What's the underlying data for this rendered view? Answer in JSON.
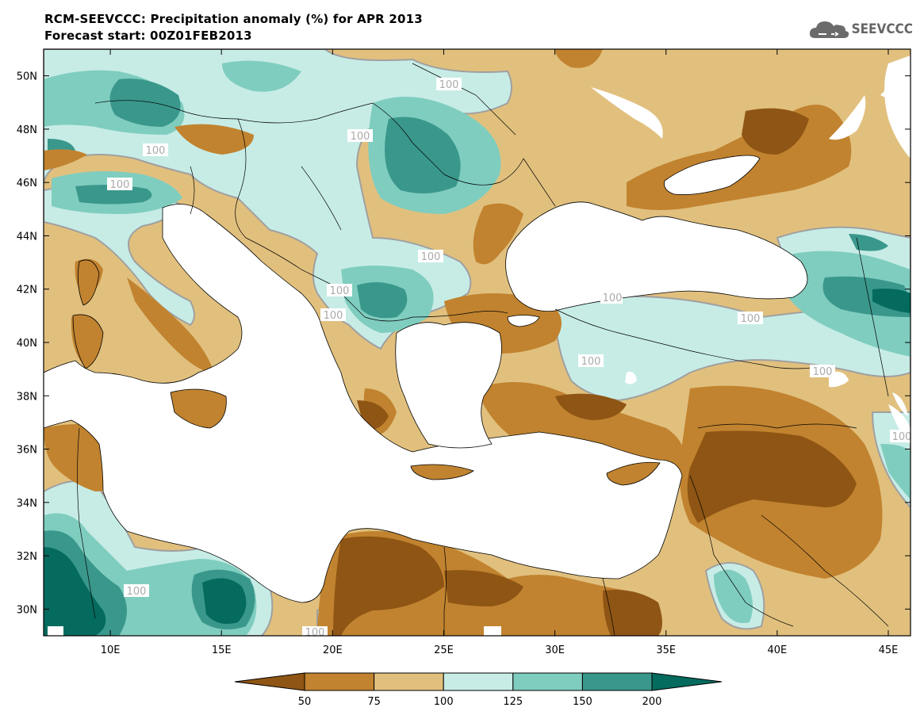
{
  "header": {
    "title": "RCM-SEEVCCC: Precipitation anomaly (%) for APR 2013",
    "subtitle": "Forecast start: 00Z01FEB2013"
  },
  "logo": {
    "text": "SEEVCCC",
    "icon": "cloud-icon",
    "color": "#6b6b6b"
  },
  "map": {
    "projection": "lat-lon",
    "lon_range": [
      7,
      46
    ],
    "lat_range": [
      29,
      51
    ],
    "x_ticks": [
      "10E",
      "15E",
      "20E",
      "25E",
      "30E",
      "35E",
      "40E",
      "45E"
    ],
    "y_ticks": [
      "50N",
      "48N",
      "46N",
      "44N",
      "42N",
      "40N",
      "38N",
      "36N",
      "34N",
      "32N",
      "30N"
    ],
    "contour_label": "100",
    "contour_labels": [
      "100",
      "100",
      "100",
      "100",
      "100",
      "100",
      "100",
      "100",
      "100",
      "100",
      "100",
      "100",
      "100",
      "100"
    ]
  },
  "colorbar": {
    "labels": [
      "50",
      "75",
      "100",
      "125",
      "150",
      "200"
    ],
    "colors": [
      "#8f5514",
      "#c1832f",
      "#e1c07e",
      "#c7ece6",
      "#7fcdbf",
      "#3a978c",
      "#046b5e"
    ]
  },
  "colors": {
    "sea": "#ffffff",
    "very_dry": "#8f5514",
    "dry": "#c1832f",
    "slightly_dry": "#e1c07e",
    "slightly_wet": "#c7ece6",
    "wet": "#7fcdbf",
    "very_wet": "#3a978c",
    "extreme_wet": "#046b5e",
    "contour": "#a0a0a0"
  }
}
